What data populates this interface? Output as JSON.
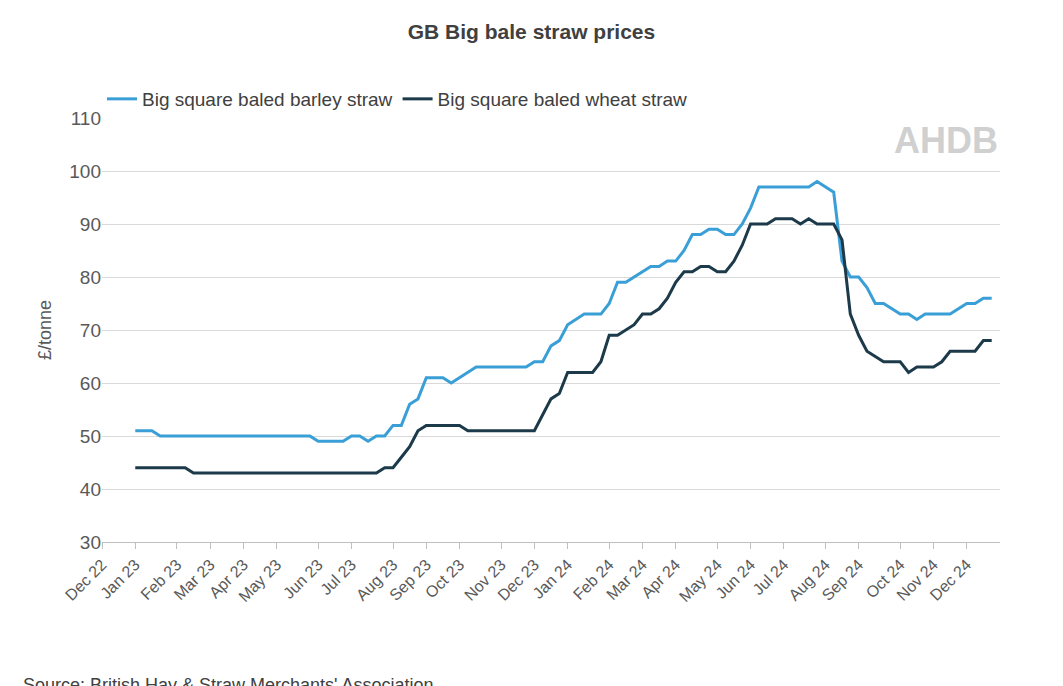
{
  "chart_data": {
    "type": "line",
    "title": "GB Big bale straw prices",
    "y_label": "£/tonne",
    "source": "Source: British Hay & Straw Merchants' Association",
    "logo_text": "AHDB",
    "categories": [
      "Dec 22",
      null,
      null,
      null,
      "Jan 23",
      null,
      null,
      null,
      null,
      "Feb 23",
      null,
      null,
      null,
      "Mar 23",
      null,
      null,
      null,
      "Apr 23",
      null,
      null,
      null,
      "May 23",
      null,
      null,
      null,
      null,
      "Jun 23",
      null,
      null,
      null,
      "Jul 23",
      null,
      null,
      null,
      null,
      "Aug 23",
      null,
      null,
      null,
      "Sep 23",
      null,
      null,
      null,
      "Oct 23",
      null,
      null,
      null,
      null,
      "Nov 23",
      null,
      null,
      null,
      "Dec 23",
      null,
      null,
      null,
      "Jan 24",
      null,
      null,
      null,
      null,
      "Feb 24",
      null,
      null,
      null,
      "Mar 24",
      null,
      null,
      null,
      "Apr 24",
      null,
      null,
      null,
      null,
      "May 24",
      null,
      null,
      null,
      "Jun 24",
      null,
      null,
      null,
      "Jul 24",
      null,
      null,
      null,
      null,
      "Aug 24",
      null,
      null,
      null,
      "Sep 24",
      null,
      null,
      null,
      null,
      "Oct 24",
      null,
      null,
      null,
      "Nov 24",
      null,
      null,
      null,
      "Dec 24",
      null,
      null,
      null
    ],
    "series": [
      {
        "name": "Big square baled barley straw",
        "color": "#3a9fd6",
        "values": [
          null,
          null,
          null,
          null,
          51,
          51,
          51,
          50,
          50,
          50,
          50,
          50,
          50,
          50,
          50,
          50,
          50,
          50,
          50,
          50,
          50,
          50,
          50,
          50,
          50,
          50,
          49,
          49,
          49,
          49,
          50,
          50,
          49,
          50,
          50,
          52,
          52,
          56,
          57,
          61,
          61,
          61,
          60,
          61,
          62,
          63,
          63,
          63,
          63,
          63,
          63,
          63,
          64,
          64,
          67,
          68,
          71,
          72,
          73,
          73,
          73,
          75,
          79,
          79,
          80,
          81,
          82,
          82,
          83,
          83,
          85,
          88,
          88,
          89,
          89,
          88,
          88,
          90,
          93,
          97,
          97,
          97,
          97,
          97,
          97,
          97,
          98,
          97,
          96,
          83,
          80,
          80,
          78,
          75,
          75,
          74,
          73,
          73,
          72,
          73,
          73,
          73,
          73,
          74,
          75,
          75,
          76,
          76
        ]
      },
      {
        "name": "Big square baled wheat straw",
        "color": "#1c3a4a",
        "values": [
          null,
          null,
          null,
          null,
          44,
          44,
          44,
          44,
          44,
          44,
          44,
          43,
          43,
          43,
          43,
          43,
          43,
          43,
          43,
          43,
          43,
          43,
          43,
          43,
          43,
          43,
          43,
          43,
          43,
          43,
          43,
          43,
          43,
          43,
          44,
          44,
          46,
          48,
          51,
          52,
          52,
          52,
          52,
          52,
          51,
          51,
          51,
          51,
          51,
          51,
          51,
          51,
          51,
          54,
          57,
          58,
          62,
          62,
          62,
          62,
          64,
          69,
          69,
          70,
          71,
          73,
          73,
          74,
          76,
          79,
          81,
          81,
          82,
          82,
          81,
          81,
          83,
          86,
          90,
          90,
          90,
          91,
          91,
          91,
          90,
          91,
          90,
          90,
          90,
          87,
          73,
          69,
          66,
          65,
          64,
          64,
          64,
          62,
          63,
          63,
          63,
          64,
          66,
          66,
          66,
          66,
          68,
          68
        ]
      }
    ],
    "ylim": [
      30,
      110
    ],
    "yticks": [
      30,
      40,
      50,
      60,
      70,
      80,
      90,
      100,
      110
    ],
    "grid": true,
    "legend": "top"
  }
}
